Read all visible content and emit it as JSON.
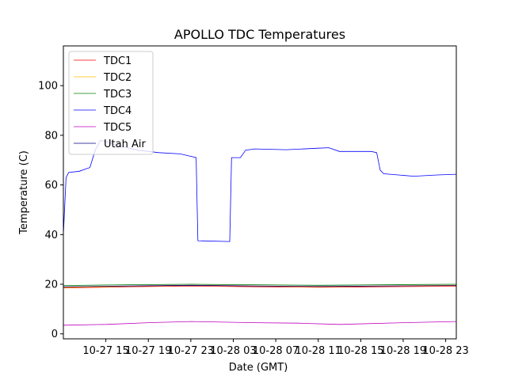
{
  "chart_data": {
    "type": "line",
    "title": "APOLLO TDC Temperatures",
    "xlabel": "Date (GMT)",
    "ylabel": "Temperature (C)",
    "xlim": [
      "2021-10-27 11:00",
      "2021-10-29 00:00"
    ],
    "ylim": [
      -2,
      116
    ],
    "yticks": [
      0,
      20,
      40,
      60,
      80,
      100
    ],
    "xticks": [
      {
        "t": "2021-10-27 15:00",
        "label": "10-27 15"
      },
      {
        "t": "2021-10-27 19:00",
        "label": "10-27 19"
      },
      {
        "t": "2021-10-27 23:00",
        "label": "10-27 23"
      },
      {
        "t": "2021-10-28 03:00",
        "label": "10-28 03"
      },
      {
        "t": "2021-10-28 07:00",
        "label": "10-28 07"
      },
      {
        "t": "2021-10-28 11:00",
        "label": "10-28 11"
      },
      {
        "t": "2021-10-28 15:00",
        "label": "10-28 15"
      },
      {
        "t": "2021-10-28 19:00",
        "label": "10-28 19"
      },
      {
        "t": "2021-10-28 23:00",
        "label": "10-28 23"
      }
    ],
    "legend_position": "upper-left",
    "grid": false,
    "series": [
      {
        "name": "TDC1",
        "color": "#ff0000",
        "points": [
          [
            "2021-10-27 11:00",
            18.5
          ],
          [
            "2021-10-27 17:00",
            19.0
          ],
          [
            "2021-10-27 23:00",
            19.3
          ],
          [
            "2021-10-28 05:00",
            19.0
          ],
          [
            "2021-10-28 11:00",
            18.8
          ],
          [
            "2021-10-28 17:00",
            19.0
          ],
          [
            "2021-10-29 00:00",
            19.2
          ]
        ]
      },
      {
        "name": "TDC2",
        "color": "#ffbf00",
        "points": [
          [
            "2021-10-27 11:00",
            18.7
          ],
          [
            "2021-10-27 17:00",
            19.2
          ],
          [
            "2021-10-27 23:00",
            19.6
          ],
          [
            "2021-10-28 05:00",
            19.3
          ],
          [
            "2021-10-28 11:00",
            19.0
          ],
          [
            "2021-10-28 17:00",
            19.3
          ],
          [
            "2021-10-29 00:00",
            19.6
          ]
        ]
      },
      {
        "name": "TDC3",
        "color": "#008000",
        "points": [
          [
            "2021-10-27 11:00",
            19.5
          ],
          [
            "2021-10-27 17:00",
            19.8
          ],
          [
            "2021-10-27 23:00",
            20.0
          ],
          [
            "2021-10-28 05:00",
            19.8
          ],
          [
            "2021-10-28 11:00",
            19.6
          ],
          [
            "2021-10-28 17:00",
            19.8
          ],
          [
            "2021-10-29 00:00",
            20.0
          ]
        ]
      },
      {
        "name": "TDC4",
        "color": "#0000ff",
        "points": [
          [
            "2021-10-27 11:00",
            40
          ],
          [
            "2021-10-27 11:15",
            63
          ],
          [
            "2021-10-27 11:30",
            65
          ],
          [
            "2021-10-27 12:30",
            65.5
          ],
          [
            "2021-10-27 13:30",
            67
          ],
          [
            "2021-10-27 14:00",
            74
          ],
          [
            "2021-10-27 14:30",
            78
          ],
          [
            "2021-10-27 16:00",
            76
          ],
          [
            "2021-10-27 18:00",
            74
          ],
          [
            "2021-10-27 20:00",
            73
          ],
          [
            "2021-10-27 22:00",
            72.5
          ],
          [
            "2021-10-27 23:00",
            71.5
          ],
          [
            "2021-10-27 23:30",
            71
          ],
          [
            "2021-10-27 23:40",
            37.5
          ],
          [
            "2021-10-28 02:40",
            37.2
          ],
          [
            "2021-10-28 02:50",
            71
          ],
          [
            "2021-10-28 03:40",
            71
          ],
          [
            "2021-10-28 04:10",
            74
          ],
          [
            "2021-10-28 05:00",
            74.5
          ],
          [
            "2021-10-28 08:00",
            74.2
          ],
          [
            "2021-10-28 11:00",
            74.8
          ],
          [
            "2021-10-28 12:00",
            75
          ],
          [
            "2021-10-28 13:00",
            73.5
          ],
          [
            "2021-10-28 16:00",
            73.5
          ],
          [
            "2021-10-28 16:30",
            73
          ],
          [
            "2021-10-28 16:50",
            66
          ],
          [
            "2021-10-28 17:10",
            64.5
          ],
          [
            "2021-10-28 20:00",
            63.5
          ],
          [
            "2021-10-28 22:00",
            64
          ],
          [
            "2021-10-29 00:00",
            64.3
          ]
        ]
      },
      {
        "name": "TDC5",
        "color": "#bf00bf",
        "points": [
          [
            "2021-10-27 11:00",
            3.5
          ],
          [
            "2021-10-27 15:00",
            3.8
          ],
          [
            "2021-10-27 19:00",
            4.5
          ],
          [
            "2021-10-27 23:00",
            5.0
          ],
          [
            "2021-10-28 05:00",
            4.5
          ],
          [
            "2021-10-28 09:00",
            4.3
          ],
          [
            "2021-10-28 13:00",
            3.8
          ],
          [
            "2021-10-28 19:00",
            4.5
          ],
          [
            "2021-10-29 00:00",
            5.0
          ]
        ]
      },
      {
        "name": "Utah Air",
        "color": "#000080",
        "points": [
          [
            "2021-10-27 11:00",
            19.0
          ],
          [
            "2021-10-27 17:00",
            19.3
          ],
          [
            "2021-10-27 23:00",
            19.6
          ],
          [
            "2021-10-28 05:00",
            19.3
          ],
          [
            "2021-10-28 11:00",
            19.1
          ],
          [
            "2021-10-28 17:00",
            19.3
          ],
          [
            "2021-10-29 00:00",
            19.5
          ]
        ]
      }
    ]
  }
}
